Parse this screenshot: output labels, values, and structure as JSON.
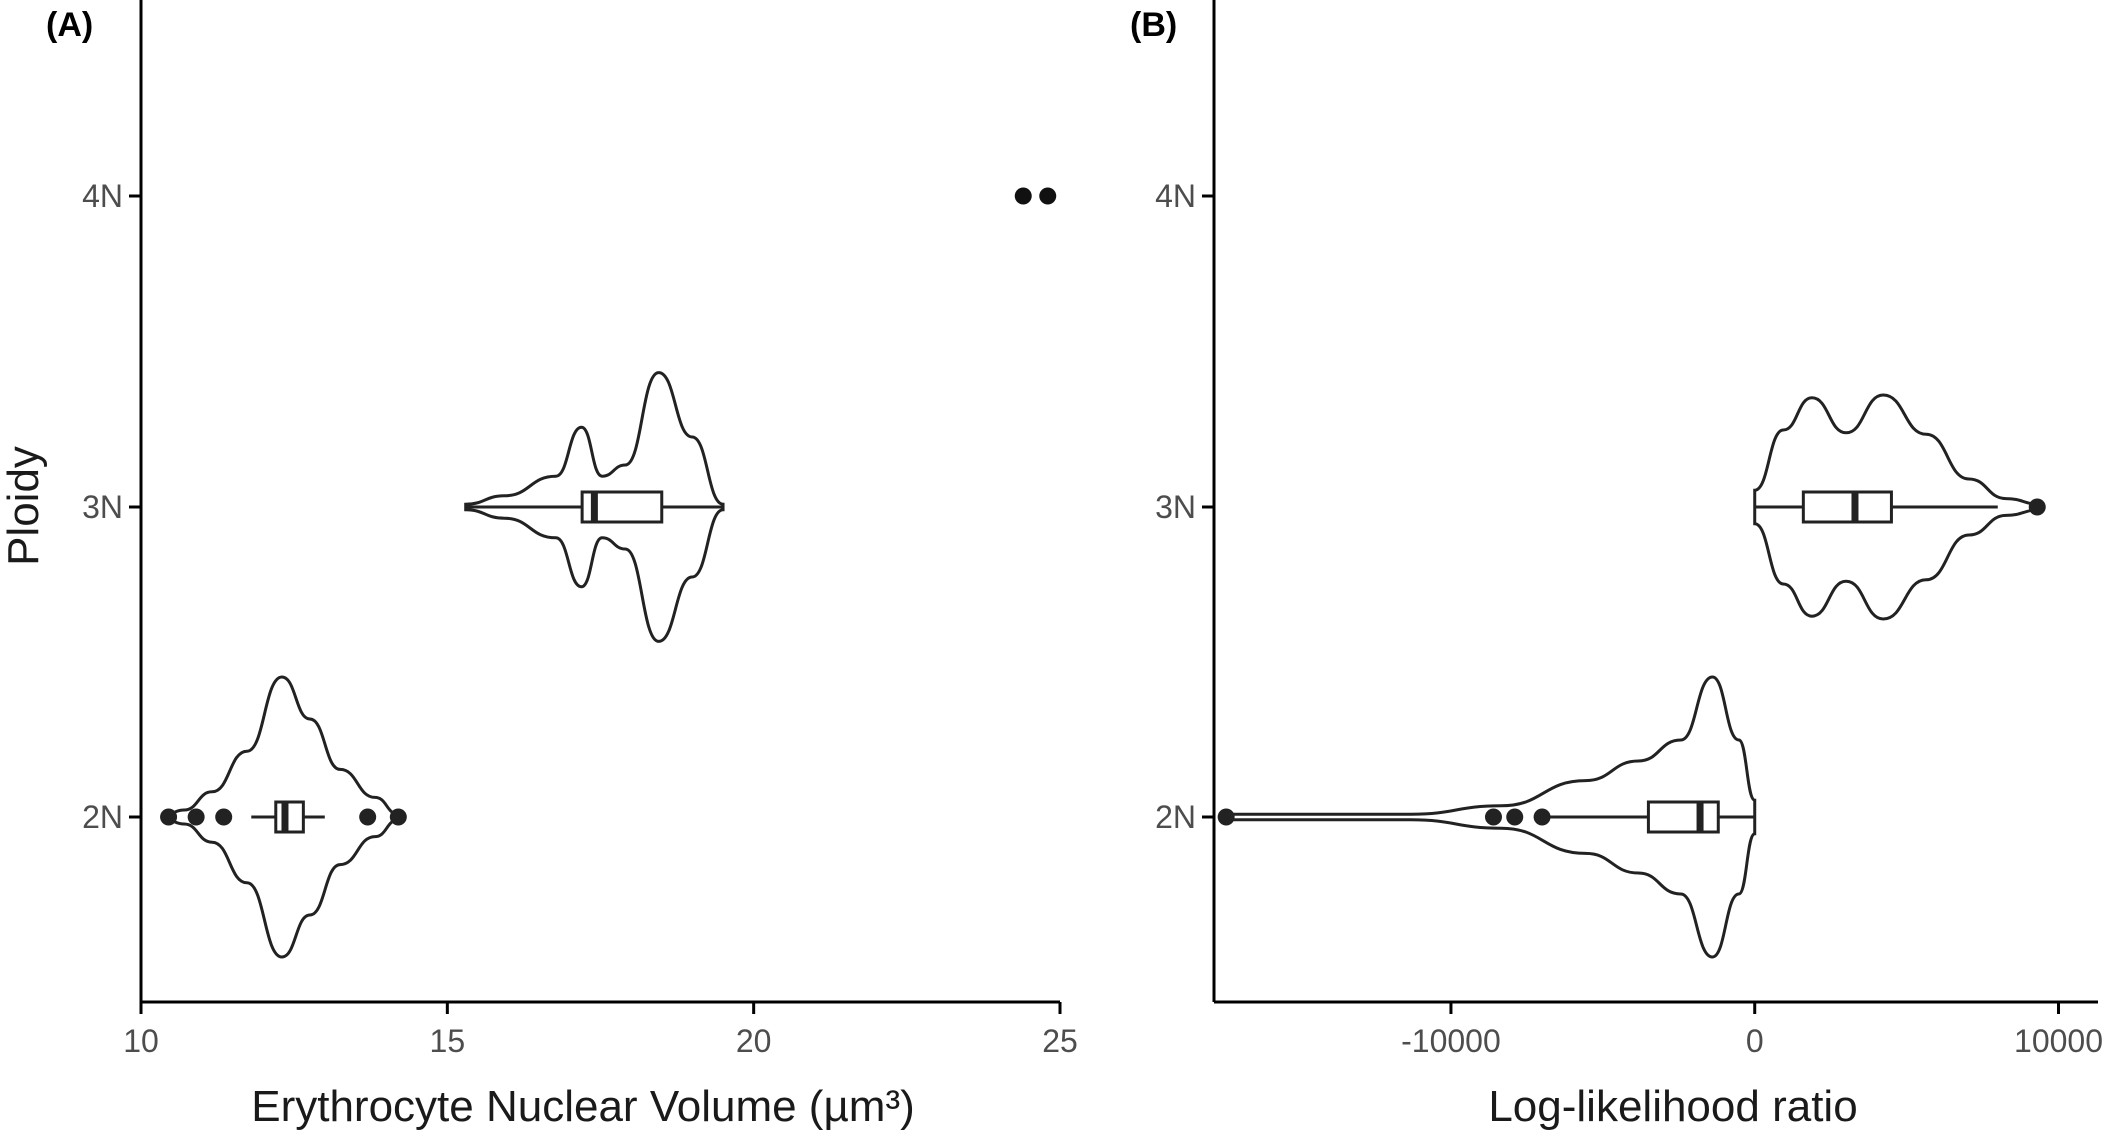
{
  "chart_data": [
    {
      "type": "violin",
      "panel_label": "(A)",
      "xlabel": "Erythrocyte Nuclear Volume (µm³)",
      "ylabel": "Ploidy",
      "xlim": [
        10,
        25
      ],
      "x_ticks": [
        10,
        15,
        20,
        25
      ],
      "categories": [
        "2N",
        "3N",
        "4N"
      ],
      "groups": [
        {
          "category": "2N",
          "violin": {
            "min": 10.4,
            "max": 14.2
          },
          "box": {
            "q1": 12.2,
            "median": 12.35,
            "q3": 12.65,
            "whisker_low": 11.8,
            "whisker_high": 13.0
          },
          "outliers": [
            10.45,
            10.9,
            11.35,
            13.7,
            14.2
          ]
        },
        {
          "category": "3N",
          "violin": {
            "min": 15.3,
            "max": 19.5
          },
          "box": {
            "q1": 17.2,
            "median": 17.4,
            "q3": 18.5,
            "whisker_low": 15.3,
            "whisker_high": 19.5
          },
          "outliers": []
        },
        {
          "category": "4N",
          "violin": null,
          "box": null,
          "outliers": [
            24.4,
            24.8
          ]
        }
      ],
      "grid": false,
      "legend": "none"
    },
    {
      "type": "violin",
      "panel_label": "(B)",
      "xlabel": "Log-likelihood ratio",
      "ylabel": "",
      "xlim": [
        -17800,
        11300
      ],
      "x_ticks": [
        -10000,
        0,
        10000
      ],
      "x_tick_labels": [
        "-10000",
        "0",
        "10000"
      ],
      "categories": [
        "2N",
        "3N",
        "4N"
      ],
      "groups": [
        {
          "category": "2N",
          "violin": {
            "min": -17400,
            "max": 0
          },
          "box": {
            "q1": -3500,
            "median": -1800,
            "q3": -1200,
            "whisker_low": -7000,
            "whisker_high": 0
          },
          "outliers": [
            -17400,
            -8600,
            -7900,
            -7000
          ]
        },
        {
          "category": "3N",
          "violin": {
            "min": 0,
            "max": 9400
          },
          "box": {
            "q1": 1600,
            "median": 3300,
            "q3": 4500,
            "whisker_low": 0,
            "whisker_high": 8000
          },
          "outliers": [
            9300
          ]
        },
        {
          "category": "4N",
          "violin": null,
          "box": null,
          "outliers": []
        }
      ],
      "grid": false,
      "legend": "none"
    }
  ]
}
